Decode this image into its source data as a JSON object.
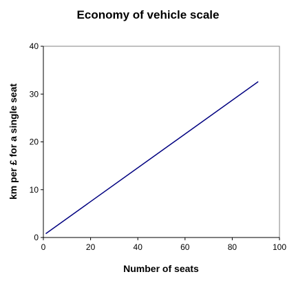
{
  "chart_data": {
    "type": "line",
    "title": "Economy of vehicle scale",
    "xlabel": "Number of seats",
    "ylabel": "km per £ for a single seat",
    "xlim": [
      0,
      100
    ],
    "ylim": [
      0,
      40
    ],
    "xticks": [
      0,
      20,
      40,
      60,
      80,
      100
    ],
    "yticks": [
      0,
      10,
      20,
      30,
      40
    ],
    "grid": false,
    "legend": "none",
    "series": [
      {
        "color": "#000080",
        "x": [
          1,
          91
        ],
        "y": [
          0.8,
          32.6
        ]
      }
    ]
  }
}
